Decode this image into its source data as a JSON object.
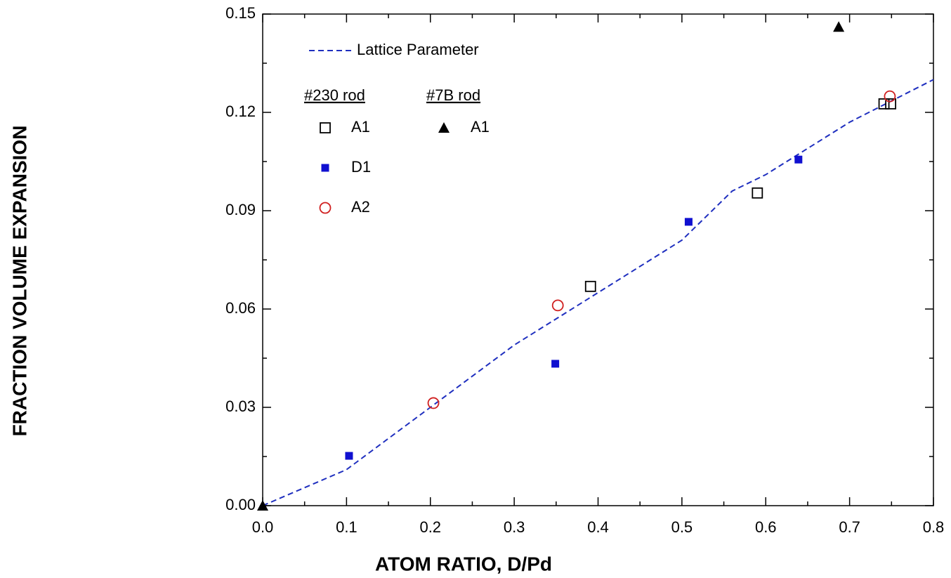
{
  "chart_data": {
    "type": "scatter",
    "xlabel": "ATOM RATIO, D/Pd",
    "ylabel": "FRACTION VOLUME EXPANSION",
    "xlim": [
      0,
      0.8
    ],
    "ylim": [
      0,
      0.15
    ],
    "xticks": [
      {
        "value": 0,
        "label": "0.0"
      },
      0.1,
      0.2,
      0.3,
      0.4,
      0.5,
      0.6,
      0.7,
      0.8
    ],
    "yticks": [
      {
        "value": 0,
        "label": "0.00"
      },
      0.03,
      0.06,
      0.09,
      0.12,
      0.15
    ],
    "xminorticks": [
      0.05,
      0.15,
      0.25,
      0.35,
      0.45,
      0.55,
      0.65,
      0.75
    ],
    "yminorticks": [
      0.015,
      0.045,
      0.075,
      0.105,
      0.135
    ],
    "series": [
      {
        "name": "Lattice Parameter",
        "kind": "dashed-line",
        "color": "#1f2fbf",
        "x": [
          0,
          0.1,
          0.2,
          0.3,
          0.4,
          0.5,
          0.56,
          0.6,
          0.7,
          0.8
        ],
        "values": [
          0,
          0.011,
          0.03,
          0.049,
          0.065,
          0.081,
          0.096,
          0.101,
          0.117,
          0.13
        ]
      }
    ],
    "groups": [
      {
        "name": "#230 rod",
        "series": [
          {
            "name": "A1",
            "marker": "square-open",
            "color": "#000000",
            "x": [
              0.391,
              0.59,
              0.741,
              0.749
            ],
            "values": [
              0.0669,
              0.0954,
              0.1226,
              0.1226
            ]
          },
          {
            "name": "D1",
            "marker": "square",
            "color": "#1010d0",
            "x": [
              0.103,
              0.349,
              0.508,
              0.639
            ],
            "values": [
              0.0152,
              0.0433,
              0.0866,
              0.1056
            ]
          },
          {
            "name": "A2",
            "marker": "circle-open",
            "color": "#d02020",
            "x": [
              0.2036,
              0.352,
              0.748
            ],
            "values": [
              0.0313,
              0.0611,
              0.1249
            ]
          }
        ]
      },
      {
        "name": "#7B rod",
        "series": [
          {
            "name": "A1",
            "marker": "triangle",
            "color": "#000000",
            "x": [
              0,
              0.687
            ],
            "values": [
              0,
              0.1461
            ]
          }
        ]
      }
    ]
  }
}
